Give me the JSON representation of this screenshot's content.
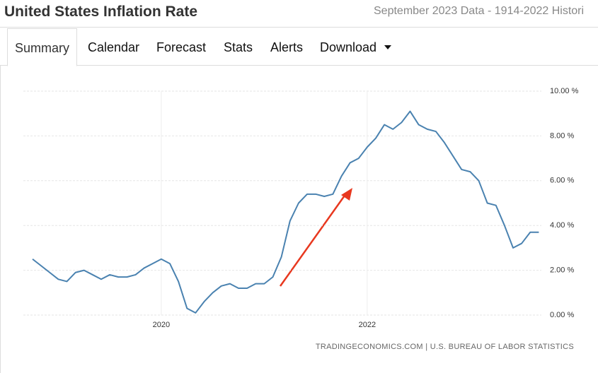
{
  "header": {
    "title": "United States Inflation Rate",
    "subtitle": "September 2023 Data - 1914-2022 Histori"
  },
  "tabs": [
    "Summary",
    "Calendar",
    "Forecast",
    "Stats",
    "Alerts",
    "Download"
  ],
  "chart_data": {
    "type": "line",
    "categories": [
      null,
      null,
      null,
      null,
      null,
      null,
      null,
      null,
      null,
      null,
      null,
      null,
      null,
      null,
      null,
      "2020",
      null,
      null,
      null,
      null,
      null,
      null,
      null,
      null,
      null,
      null,
      null,
      null,
      null,
      null,
      null,
      null,
      null,
      null,
      null,
      null,
      null,
      null,
      null,
      "2022",
      null,
      null,
      null,
      null,
      null,
      null,
      null,
      null,
      null,
      null,
      null,
      null,
      null,
      null,
      null,
      null,
      null,
      null,
      null,
      null
    ],
    "series": [
      {
        "color": "#4a82b0",
        "values": [
          2.5,
          2.2,
          1.9,
          1.6,
          1.5,
          1.9,
          2.0,
          1.8,
          1.6,
          1.8,
          1.7,
          1.7,
          1.8,
          2.1,
          2.3,
          2.5,
          2.3,
          1.5,
          0.3,
          0.1,
          0.6,
          1.0,
          1.3,
          1.4,
          1.2,
          1.2,
          1.4,
          1.4,
          1.7,
          2.6,
          4.2,
          5.0,
          5.4,
          5.4,
          5.3,
          5.4,
          6.2,
          6.8,
          7.0,
          7.5,
          7.9,
          8.5,
          8.3,
          8.6,
          9.1,
          8.5,
          8.3,
          8.2,
          7.7,
          7.1,
          6.5,
          6.4,
          6.0,
          5.0,
          4.9,
          4.0,
          3.0,
          3.2,
          3.7,
          3.7
        ]
      }
    ],
    "ylim": [
      0,
      10
    ],
    "yticks": [
      {
        "value": 0,
        "label": "0.00 %"
      },
      {
        "value": 2,
        "label": "2.00 %"
      },
      {
        "value": 4,
        "label": "4.00 %"
      },
      {
        "value": 6,
        "label": "6.00 %"
      },
      {
        "value": 8,
        "label": "8.00 %"
      },
      {
        "value": 10,
        "label": "10.00 %"
      }
    ],
    "grid": true,
    "source": "TRADINGECONOMICS.COM | U.S. BUREAU OF LABOR STATISTICS"
  }
}
